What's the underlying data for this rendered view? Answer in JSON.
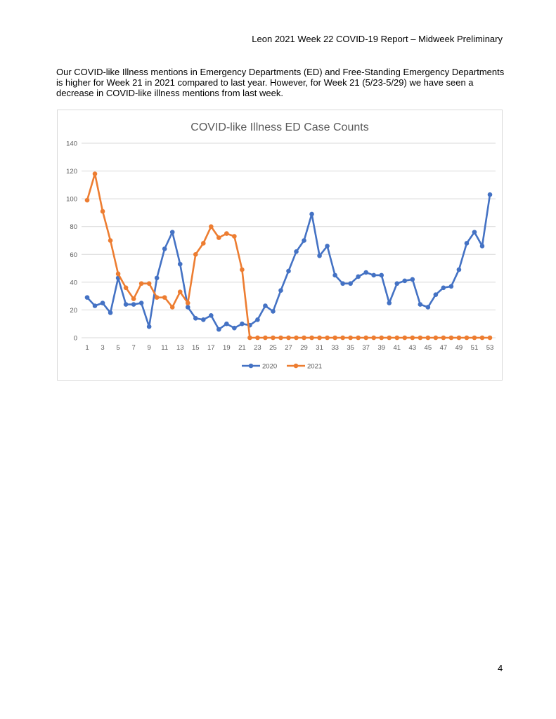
{
  "header": {
    "title": "Leon 2021 Week 22 COVID-19 Report – Midweek Preliminary"
  },
  "body": {
    "paragraph": "Our COVID-like Illness mentions in Emergency Departments (ED) and Free-Standing Emergency Departments is higher for Week 21 in 2021 compared to last year. However, for Week 21 (5/23-5/29) we have seen a decrease in COVID-like illness mentions from last week."
  },
  "footer": {
    "page_number": "4"
  },
  "colors": {
    "series_2020": "#4472C4",
    "series_2021": "#ED7D31",
    "grid": "#D9D9D9",
    "text": "#595959"
  },
  "chart_data": {
    "type": "line",
    "title": "COVID-like Illness ED Case Counts",
    "xlabel": "",
    "ylabel": "",
    "ylim": [
      0,
      140
    ],
    "yticks": [
      0,
      20,
      40,
      60,
      80,
      100,
      120,
      140
    ],
    "xticks": [
      1,
      3,
      5,
      7,
      9,
      11,
      13,
      15,
      17,
      19,
      21,
      23,
      25,
      27,
      29,
      31,
      33,
      35,
      37,
      39,
      41,
      43,
      45,
      47,
      49,
      51,
      53
    ],
    "x": [
      1,
      2,
      3,
      4,
      5,
      6,
      7,
      8,
      9,
      10,
      11,
      12,
      13,
      14,
      15,
      16,
      17,
      18,
      19,
      20,
      21,
      22,
      23,
      24,
      25,
      26,
      27,
      28,
      29,
      30,
      31,
      32,
      33,
      34,
      35,
      36,
      37,
      38,
      39,
      40,
      41,
      42,
      43,
      44,
      45,
      46,
      47,
      48,
      49,
      50,
      51,
      52,
      53
    ],
    "grid": true,
    "legend_position": "bottom",
    "series": [
      {
        "name": "2020",
        "values": [
          29,
          23,
          25,
          18,
          43,
          24,
          24,
          25,
          8,
          43,
          64,
          76,
          53,
          22,
          14,
          13,
          16,
          6,
          10,
          7,
          10,
          9,
          13,
          23,
          19,
          34,
          48,
          62,
          70,
          89,
          59,
          66,
          45,
          39,
          39,
          44,
          47,
          45,
          45,
          25,
          39,
          41,
          42,
          24,
          22,
          31,
          36,
          37,
          49,
          68,
          76,
          66,
          103
        ]
      },
      {
        "name": "2021",
        "values": [
          99,
          118,
          91,
          70,
          46,
          36,
          28,
          39,
          39,
          29,
          29,
          22,
          33,
          25,
          60,
          68,
          80,
          72,
          75,
          73,
          49,
          0,
          0,
          0,
          0,
          0,
          0,
          0,
          0,
          0,
          0,
          0,
          0,
          0,
          0,
          0,
          0,
          0,
          0,
          0,
          0,
          0,
          0,
          0,
          0,
          0,
          0,
          0,
          0,
          0,
          0,
          0,
          0
        ]
      }
    ]
  }
}
